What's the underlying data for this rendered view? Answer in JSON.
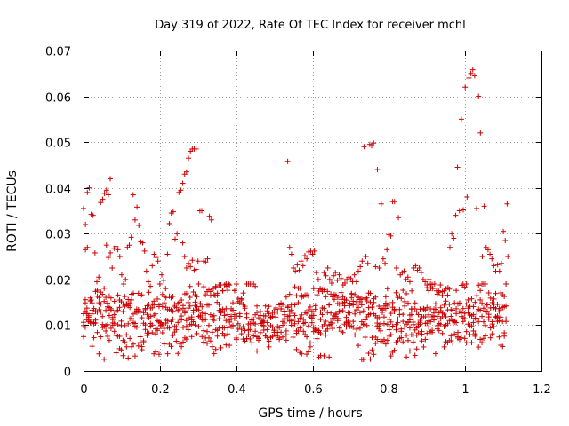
{
  "chart_data": {
    "type": "scatter",
    "title": "Day 319 of 2022, Rate Of TEC Index for receiver mchl",
    "xlabel": "GPS time / hours",
    "ylabel": "ROTI / TECUs",
    "xlim": [
      0,
      1.2
    ],
    "ylim": [
      0,
      0.07
    ],
    "xticks": [
      0,
      0.2,
      0.4,
      0.6,
      0.8,
      1,
      1.2
    ],
    "xtick_labels": [
      "0",
      "0.2",
      "0.4",
      "0.6",
      "0.8",
      "1",
      "1.2"
    ],
    "yticks": [
      0,
      0.01,
      0.02,
      0.03,
      0.04,
      0.05,
      0.06,
      0.07
    ],
    "ytick_labels": [
      "0",
      "0.01",
      "0.02",
      "0.03",
      "0.04",
      "0.05",
      "0.06",
      "0.07"
    ],
    "grid": true,
    "marker": "+",
    "color": "#cc0000",
    "series": [
      {
        "name": "ROTI",
        "points": [
          [
            0.0,
            0.0355
          ],
          [
            0.005,
            0.032
          ],
          [
            0.01,
            0.039
          ],
          [
            0.015,
            0.04
          ],
          [
            0.02,
            0.0342
          ],
          [
            0.025,
            0.034
          ],
          [
            0.005,
            0.0265
          ],
          [
            0.01,
            0.027
          ],
          [
            0.02,
            0.0155
          ],
          [
            0.03,
            0.0258
          ],
          [
            0.035,
            0.0195
          ],
          [
            0.04,
            0.0205
          ],
          [
            0.045,
            0.0368
          ],
          [
            0.05,
            0.0375
          ],
          [
            0.055,
            0.0388
          ],
          [
            0.06,
            0.0395
          ],
          [
            0.065,
            0.0385
          ],
          [
            0.07,
            0.042
          ],
          [
            0.06,
            0.0275
          ],
          [
            0.065,
            0.0248
          ],
          [
            0.07,
            0.0258
          ],
          [
            0.075,
            0.0225
          ],
          [
            0.08,
            0.0268
          ],
          [
            0.085,
            0.0272
          ],
          [
            0.09,
            0.0265
          ],
          [
            0.095,
            0.025
          ],
          [
            0.1,
            0.021
          ],
          [
            0.105,
            0.019
          ],
          [
            0.11,
            0.02
          ],
          [
            0.115,
            0.027
          ],
          [
            0.12,
            0.0275
          ],
          [
            0.125,
            0.0292
          ],
          [
            0.13,
            0.0385
          ],
          [
            0.135,
            0.033
          ],
          [
            0.14,
            0.0358
          ],
          [
            0.145,
            0.0318
          ],
          [
            0.15,
            0.0282
          ],
          [
            0.155,
            0.028
          ],
          [
            0.16,
            0.0262
          ],
          [
            0.165,
            0.0218
          ],
          [
            0.17,
            0.0195
          ],
          [
            0.175,
            0.0185
          ],
          [
            0.18,
            0.023
          ],
          [
            0.185,
            0.0255
          ],
          [
            0.19,
            0.0248
          ],
          [
            0.195,
            0.024
          ],
          [
            0.2,
            0.019
          ],
          [
            0.205,
            0.021
          ],
          [
            0.21,
            0.0198
          ],
          [
            0.215,
            0.018
          ],
          [
            0.22,
            0.0255
          ],
          [
            0.225,
            0.0322
          ],
          [
            0.23,
            0.0345
          ],
          [
            0.235,
            0.0348
          ],
          [
            0.24,
            0.0288
          ],
          [
            0.245,
            0.03
          ],
          [
            0.25,
            0.039
          ],
          [
            0.255,
            0.0395
          ],
          [
            0.26,
            0.041
          ],
          [
            0.265,
            0.043
          ],
          [
            0.27,
            0.0435
          ],
          [
            0.275,
            0.0465
          ],
          [
            0.28,
            0.048
          ],
          [
            0.285,
            0.0485
          ],
          [
            0.29,
            0.0485
          ],
          [
            0.295,
            0.0485
          ],
          [
            0.26,
            0.028
          ],
          [
            0.265,
            0.025
          ],
          [
            0.27,
            0.0225
          ],
          [
            0.275,
            0.0235
          ],
          [
            0.28,
            0.0228
          ],
          [
            0.285,
            0.0242
          ],
          [
            0.29,
            0.022
          ],
          [
            0.295,
            0.0222
          ],
          [
            0.3,
            0.024
          ],
          [
            0.305,
            0.035
          ],
          [
            0.31,
            0.035
          ],
          [
            0.315,
            0.024
          ],
          [
            0.32,
            0.0238
          ],
          [
            0.325,
            0.0245
          ],
          [
            0.33,
            0.0338
          ],
          [
            0.335,
            0.033
          ],
          [
            0.34,
            0.018
          ],
          [
            0.345,
            0.0165
          ],
          [
            0.35,
            0.015
          ],
          [
            0.355,
            0.0188
          ],
          [
            0.36,
            0.0188
          ],
          [
            0.365,
            0.0175
          ],
          [
            0.37,
            0.0188
          ],
          [
            0.375,
            0.0185
          ],
          [
            0.38,
            0.019
          ],
          [
            0.535,
            0.0458
          ],
          [
            0.54,
            0.027
          ],
          [
            0.545,
            0.0255
          ],
          [
            0.55,
            0.0225
          ],
          [
            0.555,
            0.0218
          ],
          [
            0.56,
            0.0232
          ],
          [
            0.565,
            0.022
          ],
          [
            0.57,
            0.024
          ],
          [
            0.575,
            0.023
          ],
          [
            0.58,
            0.0252
          ],
          [
            0.585,
            0.0245
          ],
          [
            0.59,
            0.026
          ],
          [
            0.595,
            0.0262
          ],
          [
            0.6,
            0.0255
          ],
          [
            0.605,
            0.0262
          ],
          [
            0.61,
            0.0215
          ],
          [
            0.615,
            0.02
          ],
          [
            0.62,
            0.018
          ],
          [
            0.625,
            0.0178
          ],
          [
            0.63,
            0.0215
          ],
          [
            0.635,
            0.0208
          ],
          [
            0.64,
            0.0225
          ],
          [
            0.645,
            0.02
          ],
          [
            0.65,
            0.0192
          ],
          [
            0.655,
            0.0208
          ],
          [
            0.66,
            0.0215
          ],
          [
            0.665,
            0.0198
          ],
          [
            0.67,
            0.021
          ],
          [
            0.675,
            0.0202
          ],
          [
            0.68,
            0.0188
          ],
          [
            0.685,
            0.0192
          ],
          [
            0.69,
            0.02
          ],
          [
            0.695,
            0.0205
          ],
          [
            0.7,
            0.0202
          ],
          [
            0.705,
            0.0195
          ],
          [
            0.71,
            0.021
          ],
          [
            0.715,
            0.0195
          ],
          [
            0.72,
            0.0218
          ],
          [
            0.725,
            0.0228
          ],
          [
            0.73,
            0.024
          ],
          [
            0.735,
            0.049
          ],
          [
            0.74,
            0.025
          ],
          [
            0.745,
            0.0235
          ],
          [
            0.75,
            0.0495
          ],
          [
            0.755,
            0.0492
          ],
          [
            0.76,
            0.0498
          ],
          [
            0.765,
            0.0228
          ],
          [
            0.77,
            0.044
          ],
          [
            0.775,
            0.0225
          ],
          [
            0.78,
            0.0365
          ],
          [
            0.785,
            0.0245
          ],
          [
            0.79,
            0.0235
          ],
          [
            0.795,
            0.0265
          ],
          [
            0.8,
            0.0298
          ],
          [
            0.805,
            0.0295
          ],
          [
            0.81,
            0.037
          ],
          [
            0.815,
            0.037
          ],
          [
            0.82,
            0.0225
          ],
          [
            0.825,
            0.0335
          ],
          [
            0.83,
            0.021
          ],
          [
            0.835,
            0.0215
          ],
          [
            0.84,
            0.0218
          ],
          [
            0.845,
            0.02
          ],
          [
            0.85,
            0.0205
          ],
          [
            0.855,
            0.0195
          ],
          [
            0.86,
            0.0175
          ],
          [
            0.865,
            0.0225
          ],
          [
            0.87,
            0.023
          ],
          [
            0.875,
            0.022
          ],
          [
            0.88,
            0.0225
          ],
          [
            0.885,
            0.0215
          ],
          [
            0.89,
            0.02
          ],
          [
            0.895,
            0.0195
          ],
          [
            0.9,
            0.0188
          ],
          [
            0.905,
            0.02
          ],
          [
            0.91,
            0.0182
          ],
          [
            0.915,
            0.018
          ],
          [
            0.92,
            0.019
          ],
          [
            0.925,
            0.0175
          ],
          [
            0.93,
            0.0175
          ],
          [
            0.935,
            0.0188
          ],
          [
            0.94,
            0.0165
          ],
          [
            0.945,
            0.0175
          ],
          [
            0.95,
            0.018
          ],
          [
            0.955,
            0.0182
          ],
          [
            0.96,
            0.027
          ],
          [
            0.965,
            0.03
          ],
          [
            0.97,
            0.029
          ],
          [
            0.975,
            0.034
          ],
          [
            0.98,
            0.0445
          ],
          [
            0.985,
            0.035
          ],
          [
            0.99,
            0.055
          ],
          [
            0.995,
            0.0352
          ],
          [
            1.0,
            0.062
          ],
          [
            1.005,
            0.038
          ],
          [
            1.01,
            0.064
          ],
          [
            1.015,
            0.065
          ],
          [
            1.02,
            0.0658
          ],
          [
            1.025,
            0.0645
          ],
          [
            1.03,
            0.0355
          ],
          [
            1.035,
            0.06
          ],
          [
            1.04,
            0.052
          ],
          [
            1.045,
            0.025
          ],
          [
            1.05,
            0.036
          ],
          [
            1.055,
            0.027
          ],
          [
            1.06,
            0.0265
          ],
          [
            1.065,
            0.0255
          ],
          [
            1.07,
            0.0245
          ],
          [
            1.075,
            0.023
          ],
          [
            1.08,
            0.0218
          ],
          [
            1.085,
            0.0232
          ],
          [
            1.09,
            0.0218
          ],
          [
            1.095,
            0.0235
          ],
          [
            1.1,
            0.0305
          ],
          [
            1.105,
            0.0285
          ],
          [
            1.11,
            0.0365
          ],
          [
            1.112,
            0.025
          ]
        ]
      }
    ]
  }
}
